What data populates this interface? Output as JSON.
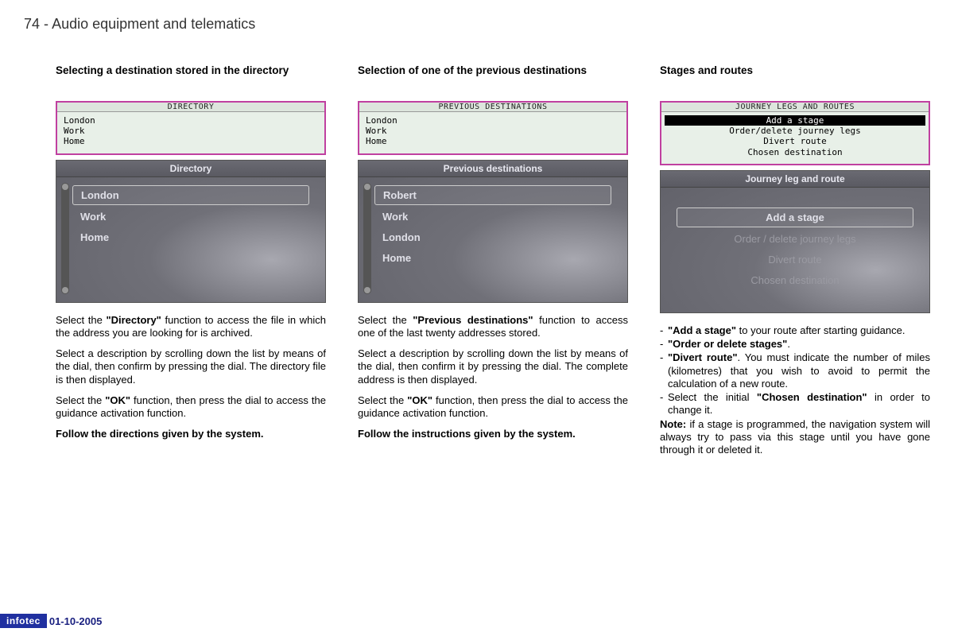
{
  "header": {
    "page_number": "74",
    "title": "Audio equipment and telematics"
  },
  "columns": [
    {
      "title": "Selecting a destination stored in the directory",
      "lcd": {
        "header": "DIRECTORY",
        "items": [
          "London",
          "Work",
          "Home"
        ],
        "selected_index": null,
        "centered": false
      },
      "tft": {
        "header": "Directory",
        "items": [
          {
            "label": "London",
            "highlighted": true
          },
          {
            "label": "Work",
            "highlighted": false
          },
          {
            "label": "Home",
            "highlighted": false
          }
        ],
        "show_scrollbar": true,
        "centered": false
      },
      "paragraphs": [
        {
          "text": "Select the ",
          "bold1": "\"Directory\"",
          "text2": " function to access the file in which the address you are looking for is archived."
        },
        {
          "text": "Select a description by scrolling down the list by means of the dial, then confirm by pressing the dial. The directory file is then displayed."
        },
        {
          "text": "Select the ",
          "bold1": "\"OK\"",
          "text2": " function, then press the dial to access the guidance activation function."
        },
        {
          "bold1": "Follow the directions given by the system."
        }
      ]
    },
    {
      "title": "Selection of one of the previous destinations",
      "lcd": {
        "header": "PREVIOUS DESTINATIONS",
        "items": [
          "London",
          "Work",
          "Home"
        ],
        "selected_index": null,
        "centered": false
      },
      "tft": {
        "header": "Previous destinations",
        "items": [
          {
            "label": "Robert",
            "highlighted": true
          },
          {
            "label": "Work",
            "highlighted": false
          },
          {
            "label": "London",
            "highlighted": false
          },
          {
            "label": "Home",
            "highlighted": false
          }
        ],
        "show_scrollbar": true,
        "centered": false
      },
      "paragraphs": [
        {
          "text": "Select the ",
          "bold1": "\"Previous destinations\"",
          "text2": " function to access one of the last twenty addresses stored."
        },
        {
          "text": "Select a description by scrolling down the list by means of the dial, then confirm it by pressing the dial. The complete address is then displayed."
        },
        {
          "text": "Select the ",
          "bold1": "\"OK\"",
          "text2": " function, then press the dial to access the guidance activation function."
        },
        {
          "bold1": "Follow the instructions given by the system."
        }
      ]
    },
    {
      "title": "Stages and routes",
      "lcd": {
        "header": "JOURNEY LEGS AND ROUTES",
        "items": [
          "Add a stage",
          "Order/delete journey legs",
          "Divert route",
          "Chosen destination"
        ],
        "selected_index": 0,
        "centered": true
      },
      "tft": {
        "header": "Journey leg and route",
        "items": [
          {
            "label": "Add a stage",
            "highlighted": true
          },
          {
            "label": "Order / delete journey legs",
            "highlighted": false,
            "dim": true
          },
          {
            "label": "Divert route",
            "highlighted": false,
            "dim": true
          },
          {
            "label": "Chosen destination",
            "highlighted": false,
            "dim": true
          }
        ],
        "show_scrollbar": false,
        "centered": true
      },
      "bullets": [
        {
          "bold1": "\"Add a stage\"",
          "text2": " to your route after starting guidance."
        },
        {
          "bold1": "\"Order or delete stages\"",
          "text2": "."
        },
        {
          "bold1": "\"Divert route\"",
          "text2": ". You must indicate the number of miles (kilometres) that you wish to avoid to permit the calculation of a new route."
        },
        {
          "text": "Select the initial ",
          "bold1": "\"Chosen destination\"",
          "text2": " in order to change it."
        }
      ],
      "note": {
        "label": "Note:",
        "text": " if a stage is programmed, the navigation system will always try to pass via this stage until you have gone through it or deleted it."
      }
    }
  ],
  "footer": {
    "logo": "infotec",
    "date": "01-10-2005"
  }
}
